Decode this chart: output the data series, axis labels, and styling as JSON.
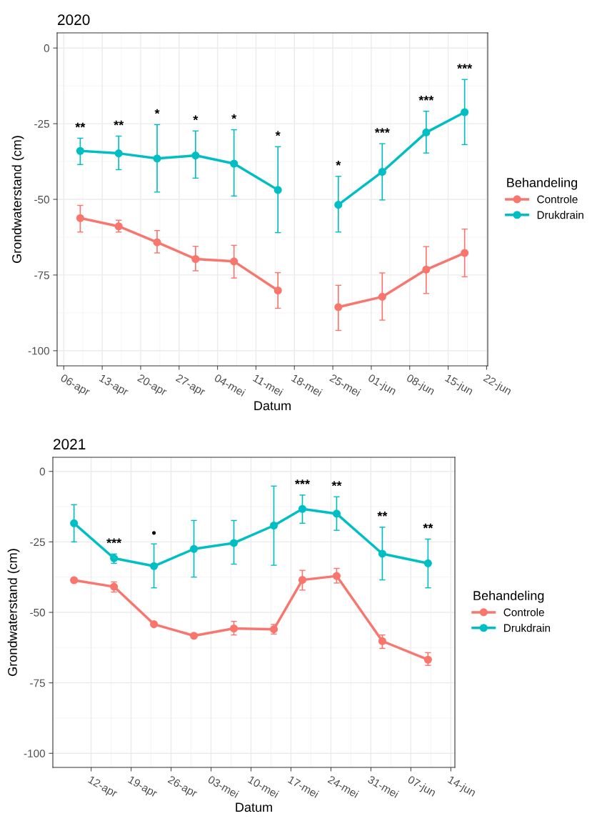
{
  "chart_data": [
    {
      "type": "line",
      "title": "2020",
      "xlabel": "Datum",
      "ylabel": "Grondwaterstand (cm)",
      "legend_title": "Behandeling",
      "legend": "right",
      "grid": true,
      "marker": "circle",
      "line_style": "solid",
      "x": [
        "2020-04-09",
        "2020-04-16",
        "2020-04-23",
        "2020-04-30",
        "2020-05-07",
        "2020-05-15",
        "2020-05-21",
        "2020-05-26",
        "2020-06-03",
        "2020-06-11",
        "2020-06-18"
      ],
      "xlim": [
        "2020-04-04T19:00",
        "2020-06-22T05:00"
      ],
      "xticks": [
        {
          "value": "2020-04-06",
          "label": "06-apr"
        },
        {
          "value": "2020-04-13",
          "label": "13-apr"
        },
        {
          "value": "2020-04-20",
          "label": "20-apr"
        },
        {
          "value": "2020-04-27",
          "label": "27-apr"
        },
        {
          "value": "2020-05-04",
          "label": "04-mei"
        },
        {
          "value": "2020-05-11",
          "label": "11-mei"
        },
        {
          "value": "2020-05-18",
          "label": "18-mei"
        },
        {
          "value": "2020-05-25",
          "label": "25-mei"
        },
        {
          "value": "2020-06-01",
          "label": "01-jun"
        },
        {
          "value": "2020-06-08",
          "label": "08-jun"
        },
        {
          "value": "2020-06-15",
          "label": "15-jun"
        },
        {
          "value": "2020-06-22",
          "label": "22-jun"
        }
      ],
      "ylim": [
        -105,
        5
      ],
      "yticks": [
        0,
        -25,
        -50,
        -75,
        -100
      ],
      "series": [
        {
          "name": "Controle",
          "color": "#f8766d",
          "values": [
            -56.2,
            -58.9,
            -64.2,
            -69.7,
            -70.5,
            -80.1,
            null,
            -85.6,
            -82.2,
            -73.2,
            -67.7
          ],
          "errors": [
            [
              -60.8,
              -52.0
            ],
            [
              -60.8,
              -56.9
            ],
            [
              -67.7,
              -60.3
            ],
            [
              -73.6,
              -65.5
            ],
            [
              -76.0,
              -65.2
            ],
            [
              -86.0,
              -74.2
            ],
            null,
            [
              -93.3,
              -78.4
            ],
            [
              -89.9,
              -74.3
            ],
            [
              -81.1,
              -65.6
            ],
            [
              -75.6,
              -59.8
            ]
          ]
        },
        {
          "name": "Drukdrain",
          "color": "#00bfc4",
          "values": [
            -34.0,
            -34.8,
            -36.5,
            -35.5,
            -38.2,
            -46.9,
            null,
            -51.8,
            -40.9,
            -27.9,
            -21.2
          ],
          "errors": [
            [
              -38.5,
              -29.8
            ],
            [
              -40.2,
              -29.1
            ],
            [
              -47.6,
              -25.3
            ],
            [
              -43.0,
              -27.4
            ],
            [
              -48.9,
              -27.0
            ],
            [
              -61.0,
              -32.6
            ],
            null,
            [
              -60.8,
              -42.4
            ],
            [
              -50.2,
              -31.6
            ],
            [
              -34.7,
              -20.9
            ],
            [
              -31.9,
              -10.4
            ]
          ]
        }
      ],
      "annotations": [
        {
          "text": "**",
          "x": "2020-04-09",
          "y": -29.8
        },
        {
          "text": "**",
          "x": "2020-04-16",
          "y": -29.1
        },
        {
          "text": "*",
          "x": "2020-04-23",
          "y": -25.3
        },
        {
          "text": "*",
          "x": "2020-04-30",
          "y": -27.4
        },
        {
          "text": "*",
          "x": "2020-05-07",
          "y": -27.0
        },
        {
          "text": "*",
          "x": "2020-05-15",
          "y": -32.6
        },
        {
          "text": "*",
          "x": "2020-05-26",
          "y": -42.4
        },
        {
          "text": "***",
          "x": "2020-06-03",
          "y": -31.6
        },
        {
          "text": "***",
          "x": "2020-06-11",
          "y": -20.9
        },
        {
          "text": "***",
          "x": "2020-06-18",
          "y": -10.4
        }
      ]
    },
    {
      "type": "line",
      "title": "2021",
      "xlabel": "Datum",
      "ylabel": "Grondwaterstand (cm)",
      "legend_title": "Behandeling",
      "legend": "right",
      "grid": true,
      "marker": "circle",
      "line_style": "solid",
      "x": [
        "2021-04-09",
        "2021-04-16",
        "2021-04-23",
        "2021-04-30",
        "2021-05-07",
        "2021-05-14",
        "2021-05-19",
        "2021-05-25",
        "2021-06-02",
        "2021-06-10"
      ],
      "xlim": [
        "2021-04-05T07:00",
        "2021-06-14T17:00"
      ],
      "xticks": [
        {
          "value": "2021-04-12",
          "label": "12-apr"
        },
        {
          "value": "2021-04-19",
          "label": "19-apr"
        },
        {
          "value": "2021-04-26",
          "label": "26-apr"
        },
        {
          "value": "2021-05-03",
          "label": "03-mei"
        },
        {
          "value": "2021-05-10",
          "label": "10-mei"
        },
        {
          "value": "2021-05-17",
          "label": "17-mei"
        },
        {
          "value": "2021-05-24",
          "label": "24-mei"
        },
        {
          "value": "2021-05-31",
          "label": "31-mei"
        },
        {
          "value": "2021-06-07",
          "label": "07-jun"
        },
        {
          "value": "2021-06-14",
          "label": "14-jun"
        }
      ],
      "ylim": [
        -105,
        5
      ],
      "yticks": [
        0,
        -25,
        -50,
        -75,
        -100
      ],
      "series": [
        {
          "name": "Controle",
          "color": "#f8766d",
          "values": [
            -38.6,
            -40.9,
            -54.2,
            -58.3,
            -55.7,
            -56.0,
            -38.5,
            -37.1,
            -60.2,
            -66.8
          ],
          "errors": [
            [
              -39.2,
              -38.0
            ],
            [
              -42.8,
              -39.2
            ],
            [
              -54.9,
              -53.4
            ],
            null,
            [
              -58.0,
              -53.2
            ],
            [
              -57.7,
              -54.3
            ],
            [
              -42.1,
              -35.1
            ],
            [
              -39.6,
              -34.4
            ],
            [
              -62.8,
              -58.0
            ],
            [
              -68.8,
              -64.3
            ]
          ]
        },
        {
          "name": "Drukdrain",
          "color": "#00bfc4",
          "values": [
            -18.4,
            -30.8,
            -33.6,
            -27.5,
            -25.4,
            -19.2,
            -13.3,
            -15.0,
            -29.2,
            -32.6
          ],
          "errors": [
            [
              -25.0,
              -11.8
            ],
            [
              -32.6,
              -29.3
            ],
            [
              -41.3,
              -25.7
            ],
            [
              -37.5,
              -17.4
            ],
            [
              -32.9,
              -17.4
            ],
            [
              -33.3,
              -5.2
            ],
            [
              -18.4,
              -8.4
            ],
            [
              -20.9,
              -9.0
            ],
            [
              -38.5,
              -19.8
            ],
            [
              -41.3,
              -24.0
            ]
          ]
        }
      ],
      "annotations": [
        {
          "text": "***",
          "x": "2021-04-16",
          "y": -29.3
        },
        {
          "text": "•",
          "x": "2021-04-23",
          "y": -25.7
        },
        {
          "text": "***",
          "x": "2021-05-19",
          "y": -8.4
        },
        {
          "text": "**",
          "x": "2021-05-25",
          "y": -9.0
        },
        {
          "text": "**",
          "x": "2021-06-02",
          "y": -19.8
        },
        {
          "text": "**",
          "x": "2021-06-10",
          "y": -24.0
        }
      ]
    }
  ]
}
